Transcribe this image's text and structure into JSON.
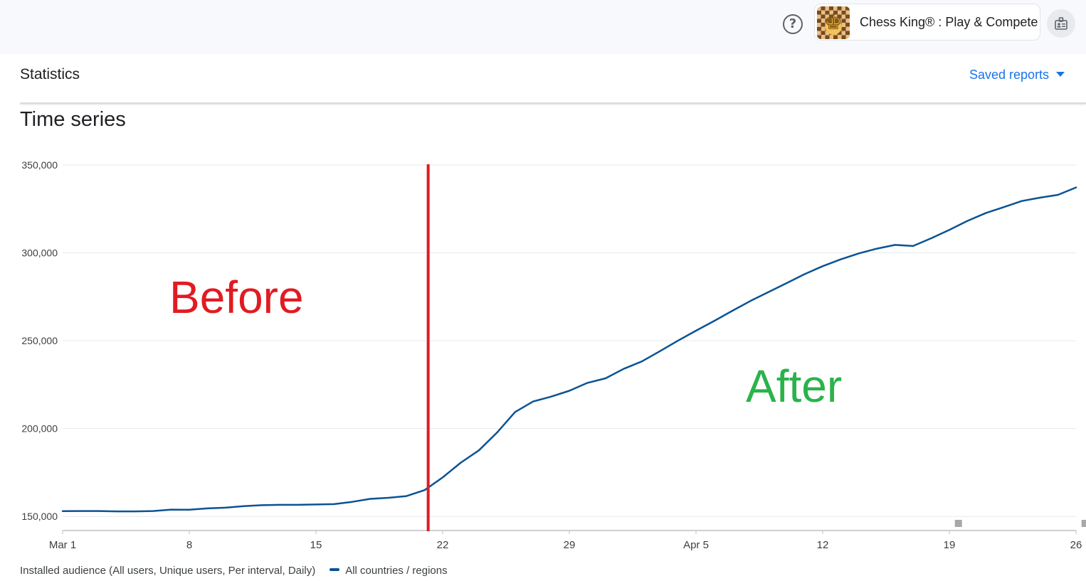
{
  "header": {
    "help_icon": "help-circle-icon",
    "app_name": "Chess King® : Play & Compete",
    "app_icon": "chess-king-app-icon",
    "account_icon": "account-switch-icon"
  },
  "page": {
    "title": "Statistics",
    "saved_reports_label": "Saved reports",
    "section_title": "Time series"
  },
  "legend": {
    "metric_label": "Installed audience (All users, Unique users, Per interval, Daily)",
    "series_label": "All countries / regions"
  },
  "colors": {
    "line": "#0b5394",
    "marker": "#e11b22",
    "before": "#e11b22",
    "after": "#2ab34a",
    "grid": "#e8eaed",
    "axis_text": "#3c4043",
    "event_marker": "#a8a8a8"
  },
  "chart_data": {
    "type": "line",
    "title": "Time series",
    "y_tick_labels": [
      "150,000",
      "200,000",
      "250,000",
      "300,000",
      "350,000"
    ],
    "y_ticks": [
      150000,
      200000,
      250000,
      300000,
      350000
    ],
    "x_tick_labels": [
      "Mar 1",
      "8",
      "15",
      "22",
      "29",
      "Apr 5",
      "12",
      "19",
      "26"
    ],
    "x_tick_days": [
      0,
      7,
      14,
      21,
      28,
      35,
      42,
      49,
      56
    ],
    "ylim": [
      142000,
      350000
    ],
    "xlim": [
      0,
      56
    ],
    "grid": true,
    "series": [
      {
        "name": "All countries / regions",
        "x": [
          0,
          1,
          2,
          3,
          4,
          5,
          6,
          7,
          8,
          9,
          10,
          11,
          12,
          13,
          14,
          15,
          16,
          17,
          18,
          19,
          20,
          21,
          22,
          23,
          24,
          25,
          26,
          27,
          28,
          29,
          30,
          31,
          32,
          33,
          34,
          35,
          36,
          37,
          38,
          39,
          40,
          41,
          42,
          43,
          44,
          45,
          46,
          47,
          48,
          49,
          50,
          51,
          52,
          53,
          54,
          55,
          56
        ],
        "values": [
          153000,
          153100,
          153100,
          152900,
          152900,
          153100,
          153900,
          153800,
          154600,
          155000,
          155900,
          156400,
          156600,
          156600,
          156800,
          157000,
          158300,
          160000,
          160600,
          161600,
          165000,
          172200,
          180600,
          187600,
          197700,
          209400,
          215400,
          218200,
          221500,
          226000,
          228600,
          234000,
          238200,
          244000,
          250000,
          255700,
          261200,
          267000,
          272600,
          277700,
          282700,
          287900,
          292400,
          296300,
          299700,
          302400,
          304500,
          303900,
          308300,
          313100,
          318200,
          322600,
          326000,
          329500,
          331400,
          333000,
          337200
        ]
      }
    ],
    "annotations": [
      {
        "text": "Before",
        "color": "#e11b22"
      },
      {
        "text": "After",
        "color": "#2ab34a"
      }
    ],
    "marker_line_day": 20.2,
    "event_marker_days": [
      49.5,
      56.5,
      57.5
    ],
    "legend_position": "bottom-left"
  }
}
